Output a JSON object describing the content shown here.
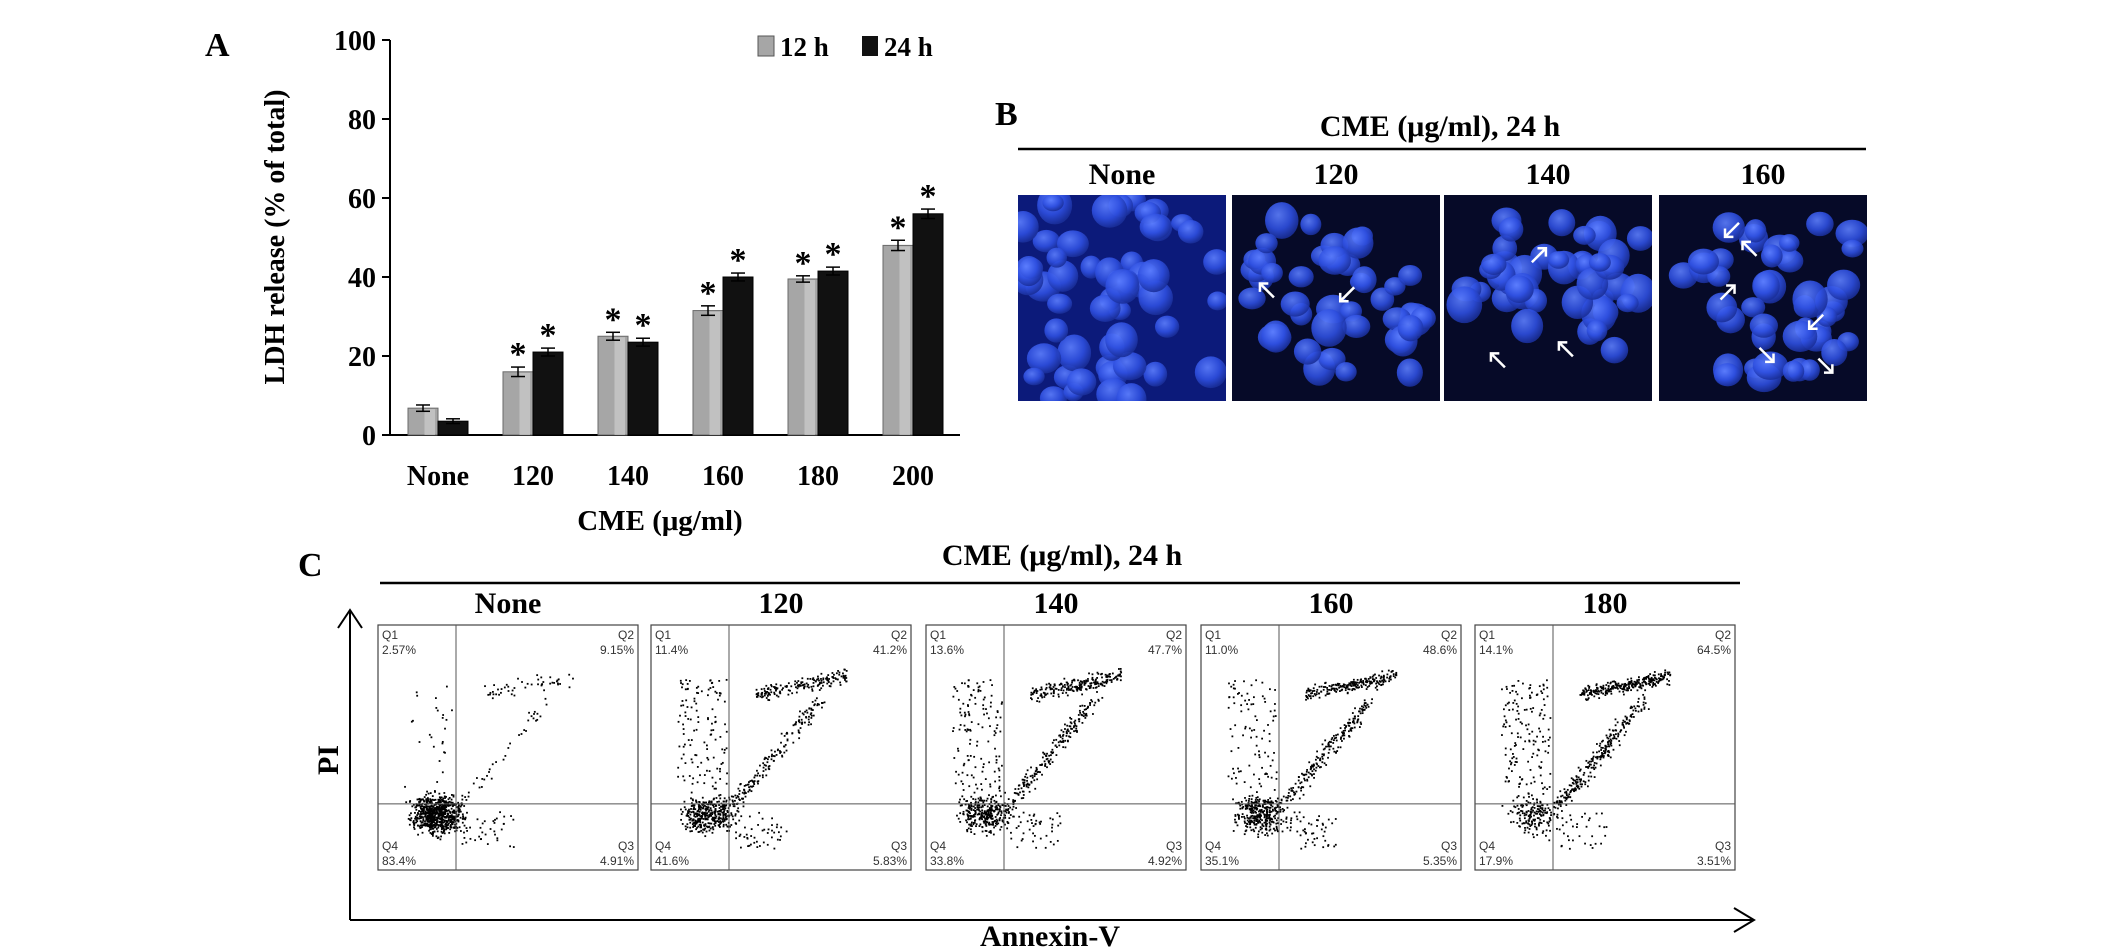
{
  "panel_labels": {
    "a": "A",
    "b": "B",
    "c": "C"
  },
  "chart_data": [
    {
      "panel": "A",
      "type": "bar",
      "xlabel": "CME (μg/ml)",
      "ylabel": "LDH release (% of total)",
      "ylim": [
        0,
        100
      ],
      "yticks": [
        "0",
        "20",
        "40",
        "60",
        "80",
        "100"
      ],
      "categories": [
        "None",
        "120",
        "140",
        "160",
        "180",
        "200"
      ],
      "legend_position": "top-right",
      "significance_marker": "*",
      "series": [
        {
          "name": "12 h",
          "color": "#a6a6a6",
          "values": [
            6.8,
            16,
            25,
            31.5,
            39.5,
            48
          ],
          "errors": [
            0.8,
            1.2,
            1.0,
            1.2,
            0.8,
            1.3
          ],
          "significant": [
            false,
            true,
            true,
            true,
            true,
            true
          ]
        },
        {
          "name": "24 h",
          "color": "#111111",
          "values": [
            3.5,
            21,
            23.5,
            40,
            41.5,
            56
          ],
          "errors": [
            0.6,
            1.0,
            1.0,
            1.0,
            1.0,
            1.2
          ],
          "significant": [
            false,
            true,
            true,
            true,
            true,
            true
          ]
        }
      ]
    },
    {
      "panel": "C",
      "type": "scatter",
      "title": "CME (μg/ml), 24 h",
      "xlabel": "Annexin-V",
      "ylabel": "PI",
      "plots": [
        {
          "label": "None",
          "Q1": "2.57%",
          "Q2": "9.15%",
          "Q3": "4.91%",
          "Q4": "83.4%"
        },
        {
          "label": "120",
          "Q1": "11.4%",
          "Q2": "41.2%",
          "Q3": "5.83%",
          "Q4": "41.6%"
        },
        {
          "label": "140",
          "Q1": "13.6%",
          "Q2": "47.7%",
          "Q3": "4.92%",
          "Q4": "33.8%"
        },
        {
          "label": "160",
          "Q1": "11.0%",
          "Q2": "48.6%",
          "Q3": "5.35%",
          "Q4": "35.1%"
        },
        {
          "label": "180",
          "Q1": "14.1%",
          "Q2": "64.5%",
          "Q3": "3.51%",
          "Q4": "17.9%"
        }
      ]
    }
  ],
  "panel_b": {
    "title": "CME (μg/ml), 24 h",
    "images": [
      {
        "label": "None",
        "arrows": 0
      },
      {
        "label": "120",
        "arrows": 2
      },
      {
        "label": "140",
        "arrows": 3
      },
      {
        "label": "160",
        "arrows": 6
      }
    ],
    "image_color": "#1a3aa8"
  }
}
